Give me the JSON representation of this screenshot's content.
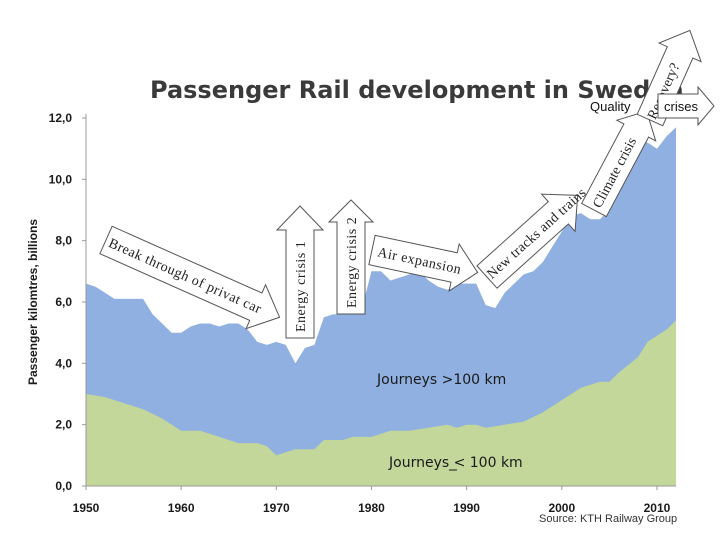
{
  "chart_data": {
    "type": "area",
    "title": "Passenger Rail development in Sweden",
    "ylabel": "Passenger kilomtres, billions",
    "xlabel": "",
    "xlim": [
      1950,
      2012
    ],
    "ylim": [
      0,
      12
    ],
    "y_ticks": [
      "0,0",
      "2,0",
      "4,0",
      "6,0",
      "8,0",
      "10,0",
      "12,0"
    ],
    "x_ticks": [
      "1950",
      "1960",
      "1970",
      "1980",
      "1990",
      "2000",
      "2010"
    ],
    "source": "Source: KTH Railway Group",
    "colors": {
      "long": "#8fb0e0",
      "short": "#c4d79a"
    },
    "series": [
      {
        "name": "Journeys >100 km",
        "role": "total",
        "points": [
          [
            1950,
            6.6
          ],
          [
            1951,
            6.5
          ],
          [
            1952,
            6.3
          ],
          [
            1953,
            6.1
          ],
          [
            1954,
            6.1
          ],
          [
            1955,
            6.1
          ],
          [
            1956,
            6.1
          ],
          [
            1957,
            5.6
          ],
          [
            1958,
            5.3
          ],
          [
            1959,
            5.0
          ],
          [
            1960,
            5.0
          ],
          [
            1961,
            5.2
          ],
          [
            1962,
            5.3
          ],
          [
            1963,
            5.3
          ],
          [
            1964,
            5.2
          ],
          [
            1965,
            5.3
          ],
          [
            1966,
            5.3
          ],
          [
            1967,
            5.1
          ],
          [
            1968,
            4.7
          ],
          [
            1969,
            4.6
          ],
          [
            1970,
            4.7
          ],
          [
            1971,
            4.6
          ],
          [
            1972,
            4.0
          ],
          [
            1973,
            4.5
          ],
          [
            1974,
            4.6
          ],
          [
            1975,
            5.5
          ],
          [
            1976,
            5.6
          ],
          [
            1977,
            5.6
          ],
          [
            1978,
            5.6
          ],
          [
            1979,
            5.8
          ],
          [
            1980,
            7.0
          ],
          [
            1981,
            7.0
          ],
          [
            1982,
            6.7
          ],
          [
            1983,
            6.8
          ],
          [
            1984,
            6.9
          ],
          [
            1985,
            7.0
          ],
          [
            1986,
            6.7
          ],
          [
            1987,
            6.5
          ],
          [
            1988,
            6.4
          ],
          [
            1989,
            6.6
          ],
          [
            1990,
            6.6
          ],
          [
            1991,
            6.6
          ],
          [
            1992,
            5.9
          ],
          [
            1993,
            5.8
          ],
          [
            1994,
            6.3
          ],
          [
            1995,
            6.6
          ],
          [
            1996,
            6.9
          ],
          [
            1997,
            7.0
          ],
          [
            1998,
            7.3
          ],
          [
            1999,
            7.8
          ],
          [
            2000,
            8.3
          ],
          [
            2001,
            8.8
          ],
          [
            2002,
            8.9
          ],
          [
            2003,
            8.7
          ],
          [
            2004,
            8.7
          ],
          [
            2005,
            9.0
          ],
          [
            2006,
            9.7
          ],
          [
            2007,
            10.5
          ],
          [
            2008,
            11.3
          ],
          [
            2009,
            11.2
          ],
          [
            2010,
            11.0
          ],
          [
            2011,
            11.4
          ],
          [
            2012,
            11.7
          ]
        ]
      },
      {
        "name": "Journeys < 100 km",
        "role": "short",
        "points": [
          [
            1950,
            3.0
          ],
          [
            1952,
            2.9
          ],
          [
            1954,
            2.7
          ],
          [
            1956,
            2.5
          ],
          [
            1958,
            2.2
          ],
          [
            1960,
            1.8
          ],
          [
            1962,
            1.8
          ],
          [
            1964,
            1.6
          ],
          [
            1966,
            1.4
          ],
          [
            1968,
            1.4
          ],
          [
            1969,
            1.3
          ],
          [
            1970,
            1.0
          ],
          [
            1972,
            1.2
          ],
          [
            1974,
            1.2
          ],
          [
            1975,
            1.5
          ],
          [
            1977,
            1.5
          ],
          [
            1978,
            1.6
          ],
          [
            1980,
            1.6
          ],
          [
            1982,
            1.8
          ],
          [
            1984,
            1.8
          ],
          [
            1986,
            1.9
          ],
          [
            1988,
            2.0
          ],
          [
            1989,
            1.9
          ],
          [
            1990,
            2.0
          ],
          [
            1991,
            2.0
          ],
          [
            1992,
            1.9
          ],
          [
            1994,
            2.0
          ],
          [
            1996,
            2.1
          ],
          [
            1998,
            2.4
          ],
          [
            2000,
            2.8
          ],
          [
            2002,
            3.2
          ],
          [
            2004,
            3.4
          ],
          [
            2005,
            3.4
          ],
          [
            2006,
            3.7
          ],
          [
            2008,
            4.2
          ],
          [
            2009,
            4.7
          ],
          [
            2010,
            4.9
          ],
          [
            2011,
            5.1
          ],
          [
            2012,
            5.4
          ]
        ]
      }
    ],
    "series_label_short": "Journeys < 100 km",
    "annotations": [
      {
        "id": "privat-car",
        "text": "Break through of privat car"
      },
      {
        "id": "energy-crisis-1",
        "text": "Energy crisis 1"
      },
      {
        "id": "energy-crisis-2",
        "text": "Energy crisis 2"
      },
      {
        "id": "air-expansion",
        "text": "Air expansion"
      },
      {
        "id": "new-tracks",
        "text": "New tracks and trains"
      },
      {
        "id": "climate-crisis",
        "text": "Climate crisis"
      },
      {
        "id": "quality",
        "text": "Quality"
      },
      {
        "id": "recovery",
        "text": "Recovery?"
      },
      {
        "id": "crises",
        "text": "crises"
      }
    ]
  }
}
